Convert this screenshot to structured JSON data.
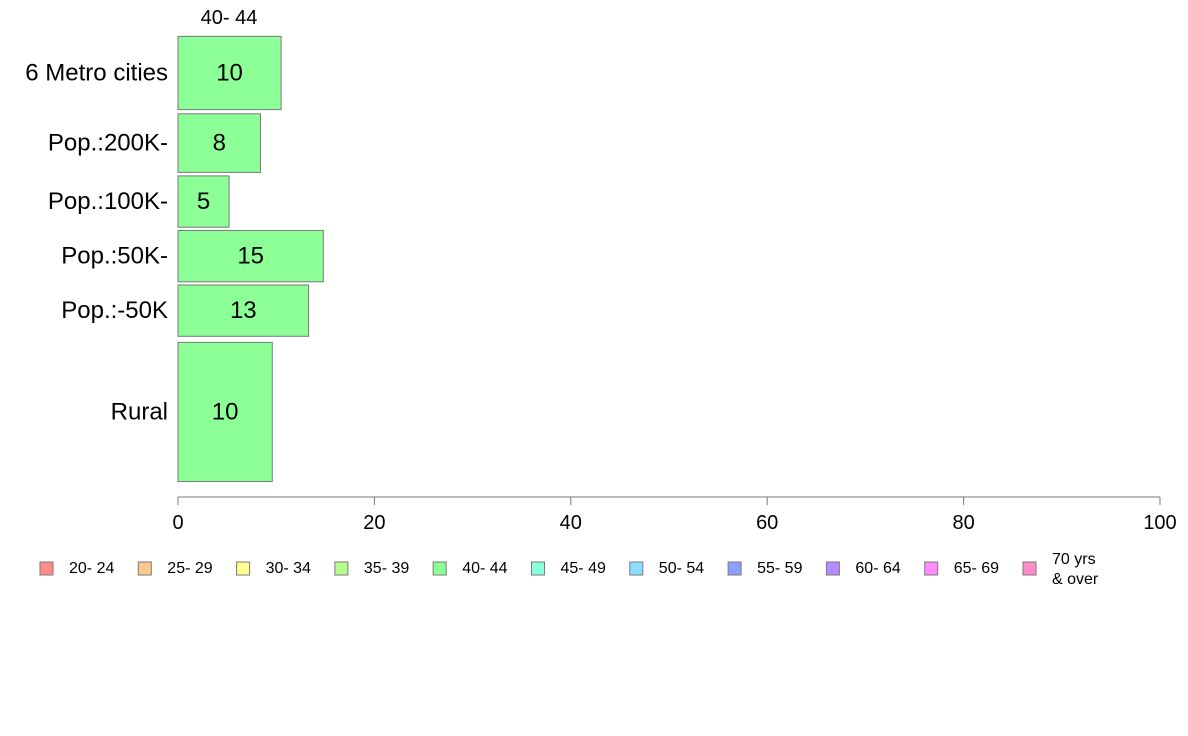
{
  "chart_data": {
    "type": "bar",
    "orientation": "horizontal",
    "series_title": "40- 44",
    "categories": [
      "6 Metro cities",
      "Pop.:200K-",
      "Pop.:100K-",
      "Pop.:50K-",
      "Pop.:-50K",
      "Rural"
    ],
    "series": [
      {
        "name": "40- 44",
        "values": [
          10.5,
          8.4,
          5.2,
          14.8,
          13.3,
          9.6
        ],
        "labels": [
          "10",
          "8",
          "5",
          "15",
          "13",
          "10"
        ],
        "color": "#8cff96"
      }
    ],
    "category_band_weights": [
      1,
      0.8,
      0.7,
      0.7,
      0.7,
      1.9
    ],
    "xlim": [
      0,
      100
    ],
    "xticks": [
      "0",
      "20",
      "40",
      "60",
      "80",
      "100"
    ],
    "grid": false,
    "legend_position": "bottom",
    "legend": [
      {
        "label": "20- 24",
        "color": "#ff8c8c"
      },
      {
        "label": "25- 29",
        "color": "#ffc88c"
      },
      {
        "label": "30- 34",
        "color": "#ffff8c"
      },
      {
        "label": "35- 39",
        "color": "#b4ff8c"
      },
      {
        "label": "40- 44",
        "color": "#8cff96"
      },
      {
        "label": "45- 49",
        "color": "#8cffdc"
      },
      {
        "label": "50- 54",
        "color": "#8cdcff"
      },
      {
        "label": "55- 59",
        "color": "#8ca0ff"
      },
      {
        "label": "60- 64",
        "color": "#b48cff"
      },
      {
        "label": "65- 69",
        "color": "#ff8cff"
      },
      {
        "label": "70 yrs\n& over",
        "color": "#ff8cc8"
      }
    ]
  }
}
